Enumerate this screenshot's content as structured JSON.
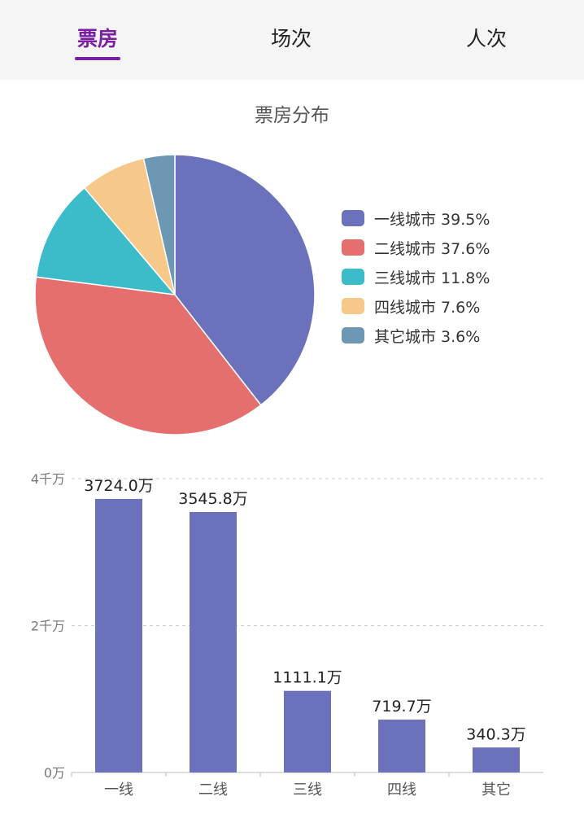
{
  "tabs": [
    {
      "label": "票房",
      "active": true
    },
    {
      "label": "场次",
      "active": false
    },
    {
      "label": "人次",
      "active": false
    }
  ],
  "colors": {
    "accent": "#7b1fa2",
    "series": [
      "#6b72bb",
      "#e56e6e",
      "#3bbcc8",
      "#f6c98a",
      "#6c98b3"
    ],
    "bar": "#6b72bb"
  },
  "chart_data": [
    {
      "type": "pie",
      "title": "票房分布",
      "labels": [
        "一线城市",
        "二线城市",
        "三线城市",
        "四线城市",
        "其它城市"
      ],
      "values": [
        39.5,
        37.6,
        11.8,
        7.6,
        3.6
      ],
      "legend_text": [
        "一线城市 39.5%",
        "二线城市 37.6%",
        "三线城市 11.8%",
        "四线城市 7.6%",
        "其它城市 3.6%"
      ],
      "legend": "right"
    },
    {
      "type": "bar",
      "categories": [
        "一线",
        "二线",
        "三线",
        "四线",
        "其它"
      ],
      "values": [
        3724.0,
        3545.8,
        1111.1,
        719.7,
        340.3
      ],
      "value_labels": [
        "3724.0万",
        "3545.8万",
        "1111.1万",
        "719.7万",
        "340.3万"
      ],
      "unit": "万",
      "ylim": [
        0,
        4000
      ],
      "yticks": [
        0,
        2000,
        4000
      ],
      "ytick_labels": [
        "0万",
        "2千万",
        "4千万"
      ],
      "grid": true
    }
  ]
}
